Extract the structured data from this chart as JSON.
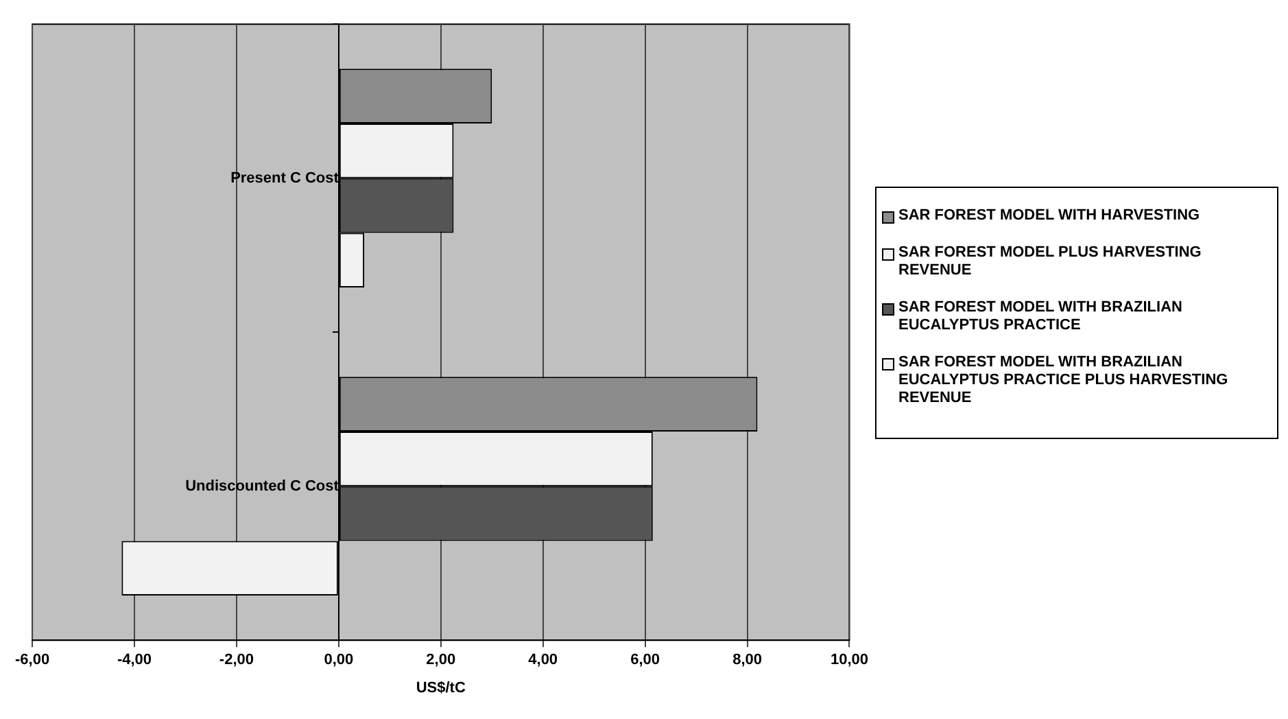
{
  "chart_data": {
    "type": "bar",
    "orientation": "horizontal",
    "xlabel": "US$/tC",
    "categories": [
      "Present C Cost",
      "Undiscounted C Cost"
    ],
    "series": [
      {
        "name": "SAR FOREST MODEL WITH HARVESTING",
        "color": "#8c8c8c",
        "values": [
          3.0,
          8.2
        ]
      },
      {
        "name": "SAR FOREST MODEL PLUS HARVESTING REVENUE",
        "color": "#f2f2f2",
        "values": [
          2.25,
          6.15
        ]
      },
      {
        "name": "SAR FOREST MODEL WITH BRAZILIAN EUCALYPTUS PRACTICE",
        "color": "#555555",
        "values": [
          2.25,
          6.15
        ]
      },
      {
        "name": "SAR FOREST MODEL WITH BRAZILIAN EUCALYPTUS PRACTICE PLUS HARVESTING REVENUE",
        "color": "#f2f2f2",
        "values": [
          0.5,
          -4.25
        ]
      }
    ],
    "xlim": [
      -6,
      10
    ],
    "xticks": [
      {
        "value": -6,
        "label": "-6,00"
      },
      {
        "value": -4,
        "label": "-4,00"
      },
      {
        "value": -2,
        "label": "-2,00"
      },
      {
        "value": 0,
        "label": "0,00"
      },
      {
        "value": 2,
        "label": "2,00"
      },
      {
        "value": 4,
        "label": "4,00"
      },
      {
        "value": 6,
        "label": "6,00"
      },
      {
        "value": 8,
        "label": "8,00"
      },
      {
        "value": 10,
        "label": "10,00"
      }
    ],
    "grid": "x",
    "legend": "right"
  }
}
